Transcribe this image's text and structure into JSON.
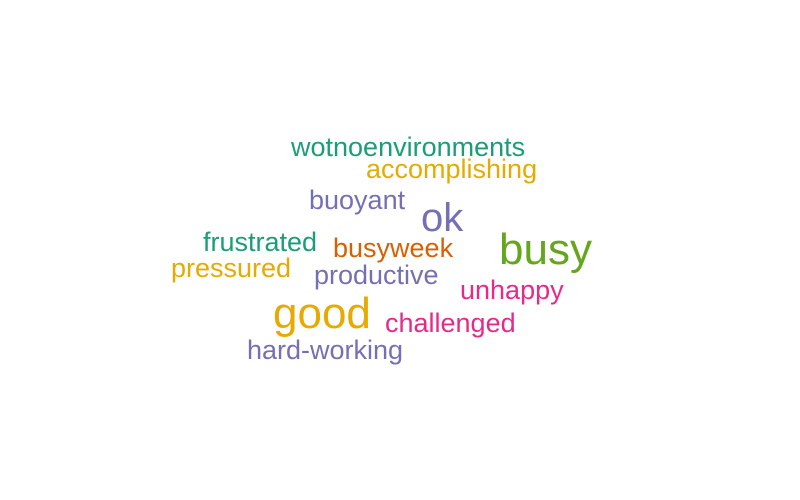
{
  "colors": {
    "teal": "#1b9e77",
    "gold": "#e6ab02",
    "purple": "#7570b3",
    "orange": "#d95f02",
    "green": "#66a61e",
    "pink": "#e7298a"
  },
  "words": [
    {
      "text": "wotnoenvironments",
      "color": "#1b9e77"
    },
    {
      "text": "accomplishing",
      "color": "#e6ab02"
    },
    {
      "text": "buoyant",
      "color": "#7570b3"
    },
    {
      "text": "ok",
      "color": "#7570b3"
    },
    {
      "text": "frustrated",
      "color": "#1b9e77"
    },
    {
      "text": "busyweek",
      "color": "#d95f02"
    },
    {
      "text": "busy",
      "color": "#66a61e"
    },
    {
      "text": "pressured",
      "color": "#e6ab02"
    },
    {
      "text": "productive",
      "color": "#7570b3"
    },
    {
      "text": "unhappy",
      "color": "#e7298a"
    },
    {
      "text": "good",
      "color": "#e6ab02"
    },
    {
      "text": "challenged",
      "color": "#e7298a"
    },
    {
      "text": "hard-working",
      "color": "#7570b3"
    }
  ]
}
